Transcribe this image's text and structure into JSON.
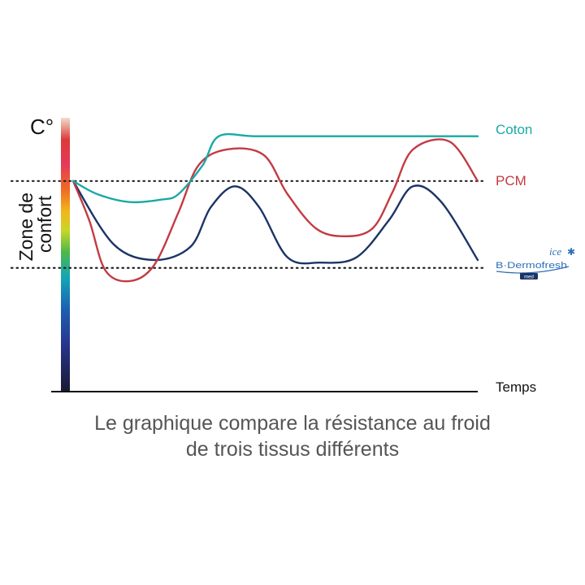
{
  "chart_data": {
    "type": "line",
    "ylabel": "C°",
    "xlabel": "Temps",
    "band_label_lines": [
      "Zone de",
      "confort"
    ],
    "caption_lines": [
      "Le graphique compare la résistance au froid",
      "de trois tissus différents"
    ],
    "x_range": [
      0,
      100
    ],
    "y_range": [
      0,
      100
    ],
    "comfort_zone": [
      47,
      80
    ],
    "series": [
      {
        "name": "Coton",
        "color": "#1aa9a5",
        "points": [
          [
            0,
            80
          ],
          [
            6,
            75
          ],
          [
            14,
            72
          ],
          [
            22,
            73
          ],
          [
            26,
            75
          ],
          [
            32,
            86
          ],
          [
            36,
            97
          ],
          [
            45,
            97
          ],
          [
            60,
            97
          ],
          [
            80,
            97
          ],
          [
            100,
            97
          ]
        ]
      },
      {
        "name": "PCM",
        "color": "#c33b42",
        "points": [
          [
            0,
            80
          ],
          [
            4,
            65
          ],
          [
            8,
            46
          ],
          [
            14,
            42
          ],
          [
            20,
            48
          ],
          [
            26,
            68
          ],
          [
            31,
            86
          ],
          [
            38,
            92
          ],
          [
            47,
            90
          ],
          [
            53,
            75
          ],
          [
            60,
            62
          ],
          [
            67,
            59
          ],
          [
            74,
            62
          ],
          [
            79,
            76
          ],
          [
            84,
            92
          ],
          [
            93,
            95
          ],
          [
            100,
            80
          ]
        ]
      },
      {
        "name": "B·Dermofresh ice",
        "color": "#1c3466",
        "points": [
          [
            0,
            80
          ],
          [
            10,
            56
          ],
          [
            20,
            50
          ],
          [
            29,
            55
          ],
          [
            34,
            70
          ],
          [
            40,
            78
          ],
          [
            46,
            70
          ],
          [
            53,
            51
          ],
          [
            61,
            49
          ],
          [
            70,
            51
          ],
          [
            78,
            65
          ],
          [
            84,
            78
          ],
          [
            91,
            72
          ],
          [
            100,
            50
          ]
        ]
      }
    ],
    "legend_placement": "right",
    "logo": {
      "brand": "B·Dermofresh",
      "super": "ice",
      "tag": "med",
      "color": "#2d6fb5"
    }
  }
}
